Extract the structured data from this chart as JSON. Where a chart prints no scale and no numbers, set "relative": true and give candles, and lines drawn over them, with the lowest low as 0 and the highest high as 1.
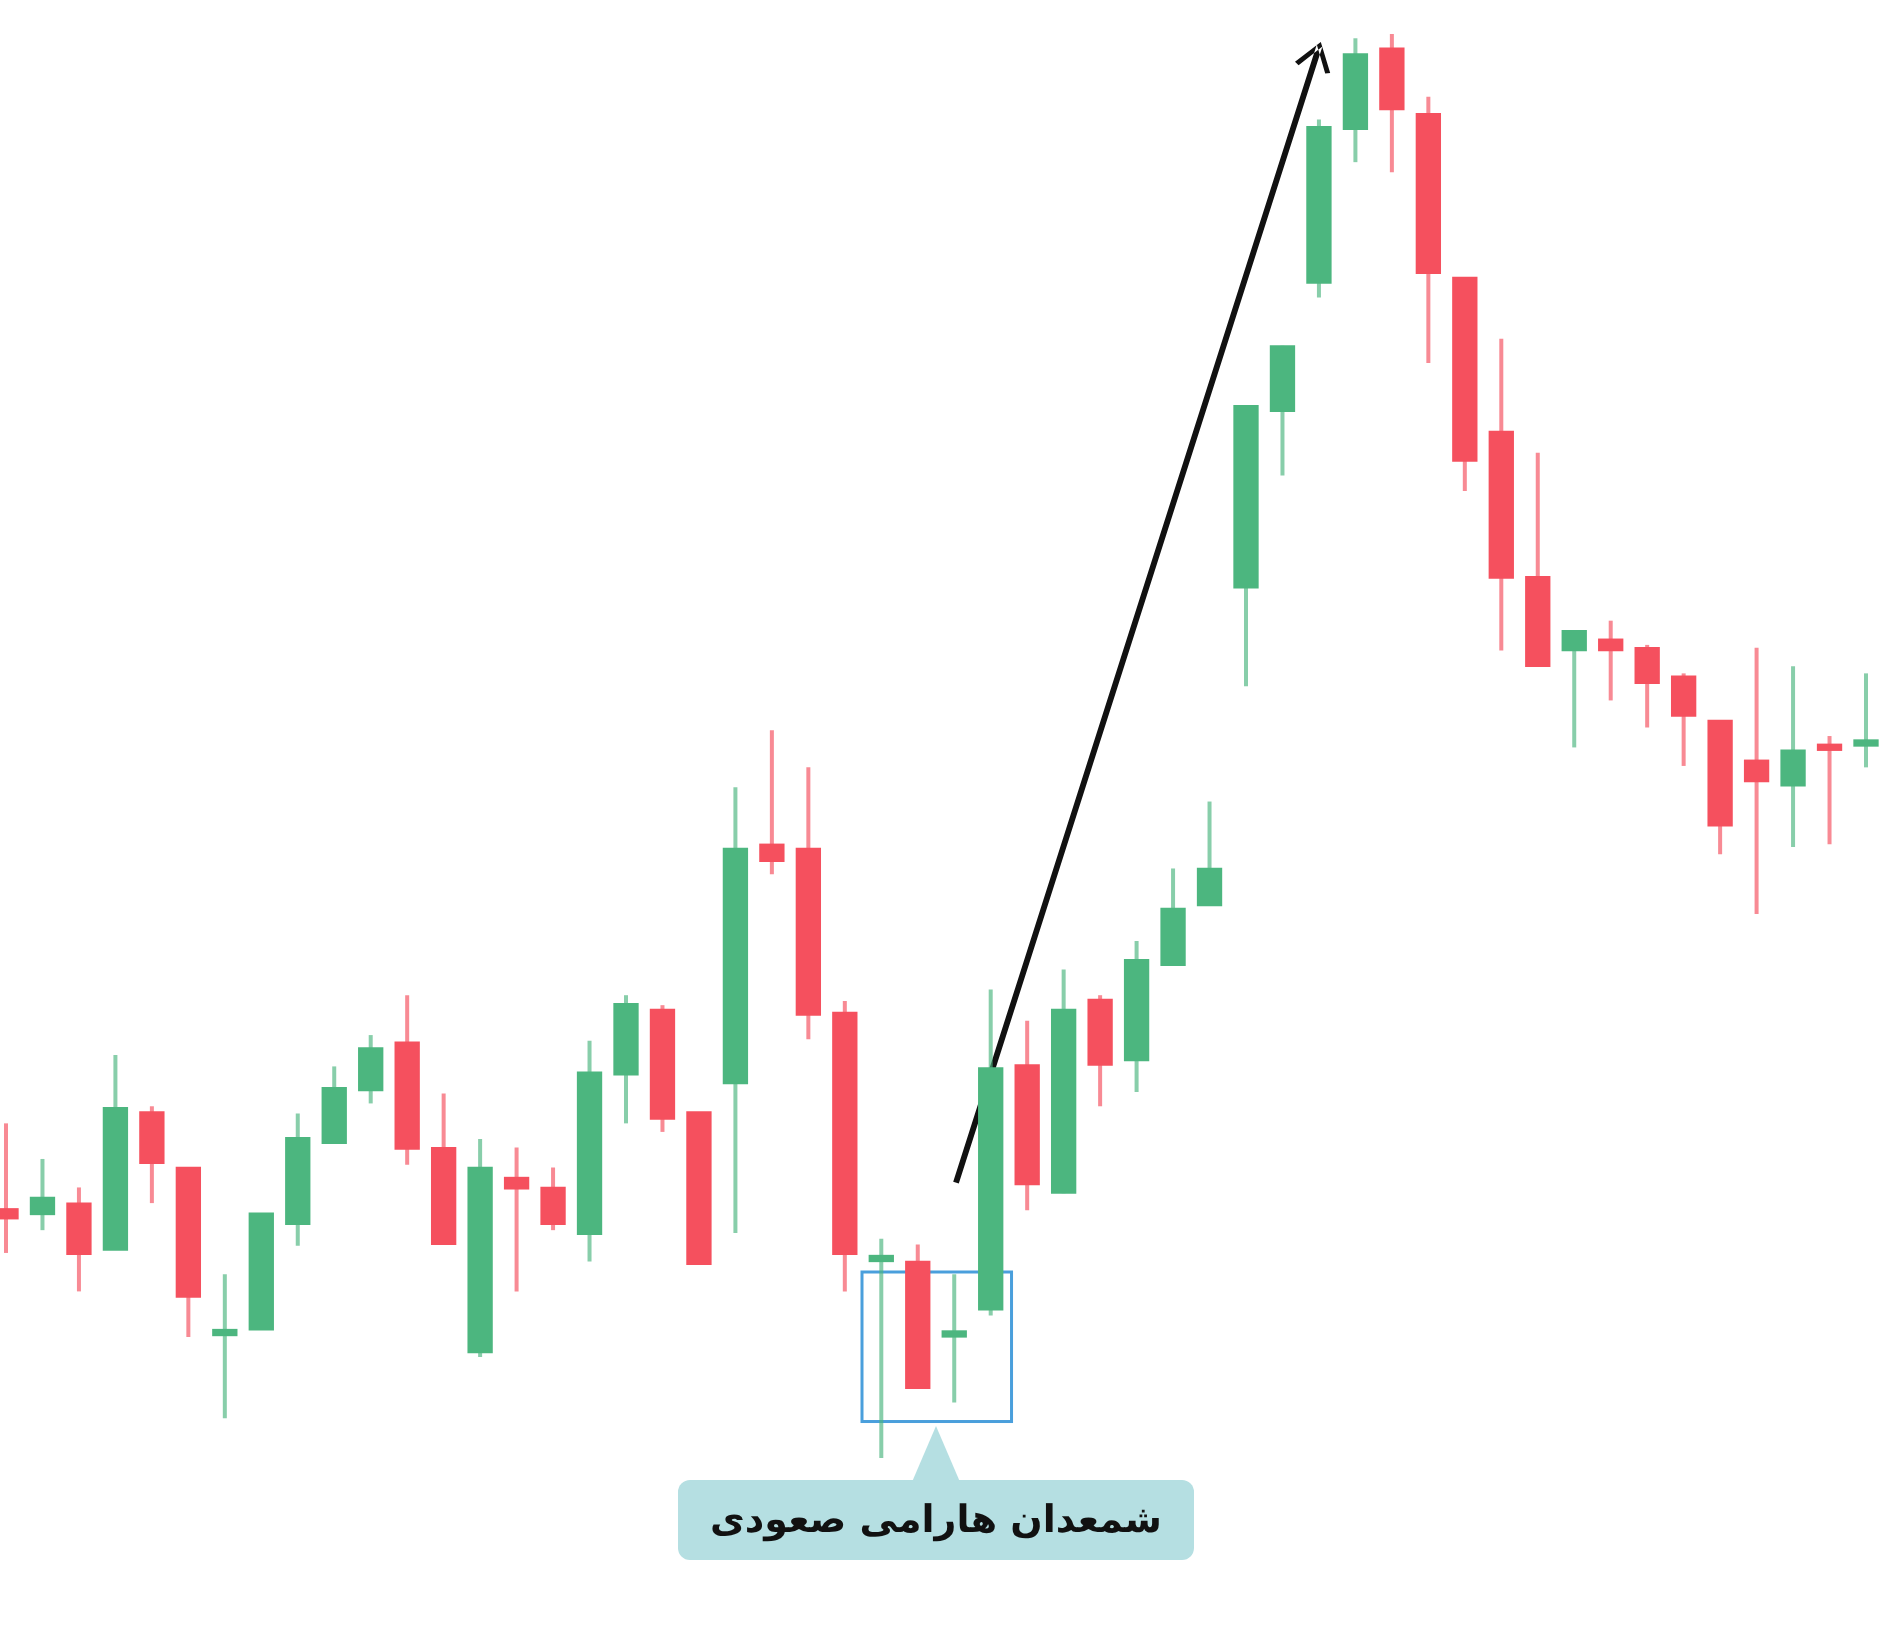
{
  "chart_data": {
    "type": "candlestick",
    "relative": true,
    "categories": [
      null,
      null,
      null,
      null,
      null,
      null,
      null,
      null,
      null,
      null,
      null,
      null,
      null,
      null,
      null,
      null,
      null,
      null,
      null,
      null,
      null,
      null,
      null,
      null,
      null,
      null,
      null,
      null,
      null,
      null,
      null,
      null,
      null,
      null,
      null,
      null,
      null,
      null,
      null,
      null,
      null,
      null,
      null,
      null,
      null,
      null,
      null,
      null,
      null,
      null,
      null,
      null
    ],
    "ohlc": [
      [
        0.175,
        0.235,
        0.144,
        0.168
      ],
      [
        0.171,
        0.21,
        0.16,
        0.183
      ],
      [
        0.179,
        0.19,
        0.117,
        0.143
      ],
      [
        0.146,
        0.283,
        0.146,
        0.246
      ],
      [
        0.243,
        0.247,
        0.179,
        0.207
      ],
      [
        0.204,
        0.204,
        0.085,
        0.113
      ],
      [
        0.086,
        0.129,
        0.028,
        0.088
      ],
      [
        0.09,
        0.172,
        0.09,
        0.172
      ],
      [
        0.164,
        0.242,
        0.149,
        0.225
      ],
      [
        0.221,
        0.275,
        0.221,
        0.26
      ],
      [
        0.258,
        0.297,
        0.249,
        0.288
      ],
      [
        0.292,
        0.325,
        0.206,
        0.217
      ],
      [
        0.218,
        0.256,
        0.15,
        0.15
      ],
      [
        0.074,
        0.224,
        0.071,
        0.204
      ],
      [
        0.197,
        0.218,
        0.117,
        0.189
      ],
      [
        0.19,
        0.204,
        0.16,
        0.164
      ],
      [
        0.157,
        0.293,
        0.138,
        0.271
      ],
      [
        0.269,
        0.325,
        0.235,
        0.319
      ],
      [
        0.315,
        0.318,
        0.229,
        0.238
      ],
      [
        0.243,
        0.243,
        0.136,
        0.136
      ],
      [
        0.263,
        0.471,
        0.158,
        0.428
      ],
      [
        0.431,
        0.511,
        0.41,
        0.419
      ],
      [
        0.428,
        0.485,
        0.294,
        0.311
      ],
      [
        0.313,
        0.321,
        0.117,
        0.143
      ],
      [
        0.138,
        0.154,
        0,
        0.14
      ],
      [
        0.138,
        0.15,
        0.049,
        0.049
      ],
      [
        0.085,
        0.129,
        0.039,
        0.089
      ],
      [
        0.104,
        0.329,
        0.1,
        0.274
      ],
      [
        0.276,
        0.307,
        0.174,
        0.192
      ],
      [
        0.186,
        0.343,
        0.186,
        0.315
      ],
      [
        0.322,
        0.325,
        0.247,
        0.276
      ],
      [
        0.279,
        0.363,
        0.257,
        0.35
      ],
      [
        0.346,
        0.414,
        0.346,
        0.386
      ],
      [
        0.388,
        0.461,
        0.388,
        0.414
      ],
      [
        0.611,
        0.739,
        0.542,
        0.739
      ],
      [
        0.735,
        0.781,
        0.69,
        0.781
      ],
      [
        0.825,
        0.94,
        0.815,
        0.935
      ],
      [
        0.933,
        0.997,
        0.91,
        0.986
      ],
      [
        0.99,
        1,
        0.903,
        0.947
      ],
      [
        0.944,
        0.956,
        0.769,
        0.832
      ],
      [
        0.829,
        0.829,
        0.679,
        0.7
      ],
      [
        0.721,
        0.786,
        0.567,
        0.618
      ],
      [
        0.619,
        0.706,
        0.556,
        0.556
      ],
      [
        0.567,
        0.581,
        0.499,
        0.581
      ],
      [
        0.575,
        0.588,
        0.532,
        0.567
      ],
      [
        0.569,
        0.571,
        0.513,
        0.544
      ],
      [
        0.549,
        0.551,
        0.486,
        0.521
      ],
      [
        0.518,
        0.518,
        0.424,
        0.444
      ],
      [
        0.49,
        0.569,
        0.382,
        0.475
      ],
      [
        0.472,
        0.556,
        0.429,
        0.497
      ],
      [
        0.501,
        0.507,
        0.431,
        0.497
      ],
      [
        0.5,
        0.551,
        0.485,
        0.504
      ]
    ],
    "colors": [
      "#f5505e",
      "#4cb67f",
      "#f5505e",
      "#4cb67f",
      "#f5505e",
      "#f5505e",
      "#4cb67f",
      "#4cb67f",
      "#4cb67f",
      "#4cb67f",
      "#4cb67f",
      "#f5505e",
      "#f5505e",
      "#4cb67f",
      "#f5505e",
      "#f5505e",
      "#4cb67f",
      "#4cb67f",
      "#f5505e",
      "#f5505e",
      "#4cb67f",
      "#f5505e",
      "#f5505e",
      "#f5505e",
      "#4cb67f",
      "#f5505e",
      "#4cb67f",
      "#4cb67f",
      "#f5505e",
      "#4cb67f",
      "#f5505e",
      "#4cb67f",
      "#4cb67f",
      "#4cb67f",
      "#4cb67f",
      "#4cb67f",
      "#4cb67f",
      "#4cb67f",
      "#f5505e",
      "#f5505e",
      "#f5505e",
      "#f5505e",
      "#f5505e",
      "#4cb67f",
      "#f5505e",
      "#f5505e",
      "#f5505e",
      "#f5505e",
      "#f5505e",
      "#4cb67f",
      "#f5505e",
      "#4cb67f"
    ],
    "annotations": [
      "شمعدان هارامی صعودی"
    ]
  }
}
